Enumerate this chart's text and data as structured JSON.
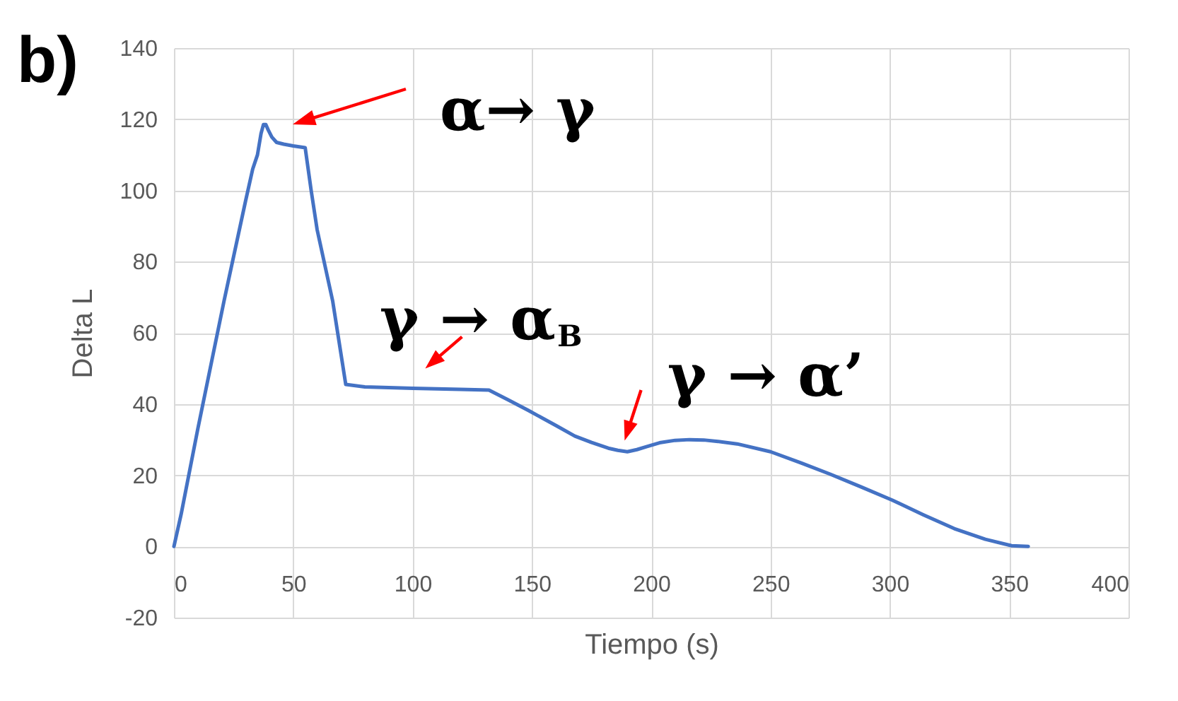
{
  "chart_data": {
    "type": "line",
    "xlabel": "Tiempo (s)",
    "ylabel": "Delta L",
    "x": [
      0,
      3,
      10,
      21,
      30,
      33,
      35,
      36.5,
      37.5,
      38.5,
      39.5,
      41,
      43,
      46,
      50,
      55,
      57.5,
      60,
      66.5,
      72,
      80,
      100,
      120,
      132,
      140,
      148.5,
      160,
      168,
      175,
      182,
      186,
      190,
      194,
      198,
      204,
      210,
      216,
      222,
      228,
      236,
      250,
      263,
      275,
      288,
      301,
      314,
      327,
      340,
      351,
      358
    ],
    "series": [
      {
        "color": "#4472c4",
        "values": [
          0,
          9,
          33,
          69,
          97,
          106,
          110,
          116,
          118.5,
          118.5,
          117,
          115,
          113.5,
          113,
          112.5,
          112,
          100,
          89,
          69,
          45.5,
          44.8,
          44.4,
          44.1,
          43.9,
          41.2,
          38.2,
          34,
          31,
          29.2,
          27.6,
          27,
          26.6,
          27.2,
          28,
          29.2,
          29.8,
          30,
          29.9,
          29.5,
          28.8,
          26.6,
          23.4,
          20.3,
          16.7,
          13,
          8.9,
          5,
          2,
          0.2,
          0
        ]
      }
    ],
    "xlim": [
      0,
      400
    ],
    "xticks": [
      0,
      50,
      100,
      150,
      200,
      250,
      300,
      350,
      400
    ],
    "ylim": [
      -20,
      140
    ],
    "yticks": [
      -20,
      0,
      20,
      40,
      60,
      80,
      100,
      120,
      140
    ],
    "grid": true,
    "annotations": [
      "b)",
      "α→ γ",
      "γ → α$_{B}$",
      "γ → α’"
    ]
  }
}
